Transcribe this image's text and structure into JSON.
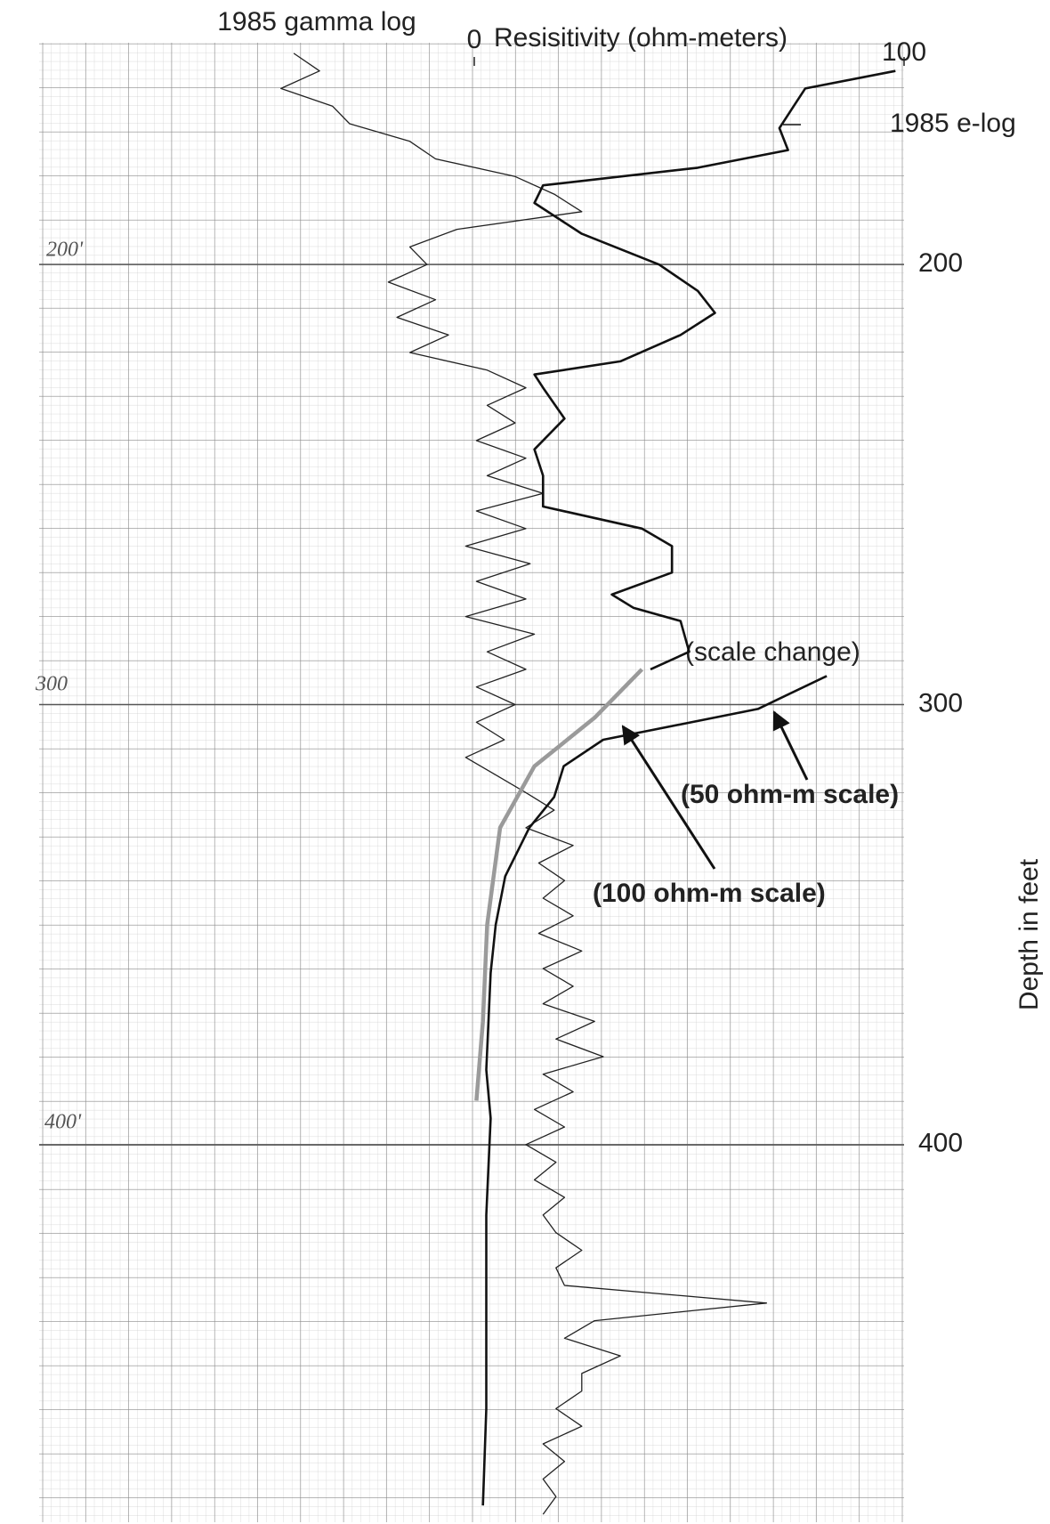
{
  "chart_data": {
    "type": "line",
    "title": "1985 gamma log",
    "x_label": "Resisitivity (ohm-meters)",
    "y_label": "Depth in feet",
    "xlim": [
      -100,
      100
    ],
    "xticks": [
      0,
      100
    ],
    "ylim": [
      150,
      485
    ],
    "yticks": [
      200,
      300,
      400
    ],
    "y_inverted": true,
    "grid": true,
    "series": [
      {
        "name": "1985 gamma log",
        "color": "#222222",
        "depth": [
          152,
          156,
          160,
          164,
          168,
          172,
          176,
          180,
          184,
          188,
          192,
          196,
          200,
          204,
          208,
          212,
          216,
          220,
          224,
          228,
          232,
          236,
          240,
          244,
          248,
          252,
          256,
          260,
          264,
          268,
          272,
          276,
          280,
          284,
          288,
          292,
          296,
          300,
          304,
          308,
          312,
          316,
          320,
          324,
          328,
          332,
          336,
          340,
          344,
          348,
          352,
          356,
          360,
          364,
          368,
          372,
          376,
          380,
          384,
          388,
          392,
          396,
          400,
          404,
          408,
          412,
          416,
          420,
          424,
          428,
          432,
          436,
          440,
          444,
          448,
          452,
          456,
          460,
          464,
          468,
          472,
          476,
          480,
          484
        ],
        "values": [
          -42,
          -36,
          -45,
          -33,
          -29,
          -15,
          -9,
          9.5,
          18.6,
          25,
          -4,
          -15,
          -11,
          -20,
          -9,
          -18,
          -6,
          -15,
          3,
          12,
          3,
          9.5,
          0.5,
          12,
          3,
          16,
          0.5,
          12,
          -2,
          13,
          0.5,
          12,
          -2,
          14,
          3,
          12,
          0.5,
          9.5,
          0.5,
          7,
          -2,
          5,
          12,
          18.6,
          12,
          23,
          15,
          21,
          16,
          23,
          15,
          25,
          16,
          23,
          16,
          28,
          19,
          30,
          16,
          23,
          14,
          21,
          12,
          19,
          14,
          21,
          16,
          19,
          25,
          19,
          21,
          68,
          28,
          21,
          34,
          25,
          25,
          19,
          25,
          16,
          21,
          16,
          19,
          16
        ]
      },
      {
        "name": "1985 e-log",
        "color": "#111111",
        "depth": [
          156,
          160,
          169,
          174,
          178,
          182,
          186,
          193,
          200,
          206,
          211,
          216,
          222,
          225,
          228,
          235,
          242,
          248,
          255,
          260,
          264,
          270,
          275,
          278,
          281,
          288,
          292
        ],
        "values": [
          98,
          77,
          71,
          73,
          52,
          16,
          14,
          25,
          43,
          52,
          56,
          48,
          34,
          14,
          16,
          21,
          14,
          16,
          16,
          39,
          46,
          46,
          32,
          37,
          48,
          50,
          41
        ]
      },
      {
        "name": "(50 ohm-m scale)",
        "color": "#111111",
        "xlim": [
          0,
          50
        ],
        "depth": [
          293.5,
          301,
          308,
          314,
          321,
          328,
          339,
          350,
          361,
          383,
          394,
          416,
          438,
          460,
          482
        ],
        "values": [
          41,
          33,
          15,
          10.4,
          9.3,
          6.4,
          3.6,
          2.5,
          1.9,
          1.4,
          1.9,
          1.4,
          1.4,
          1.4,
          1.0
        ]
      },
      {
        "name": "(100 ohm-m scale)",
        "color": "#9a9a9a",
        "depth": [
          292,
          303,
          314,
          328,
          350,
          372,
          390
        ],
        "values": [
          39,
          28,
          14,
          6,
          3,
          2,
          0.5
        ]
      }
    ],
    "annotation": "(scale change)",
    "handwritten_labels": [
      "200'",
      "300",
      "400'"
    ]
  }
}
